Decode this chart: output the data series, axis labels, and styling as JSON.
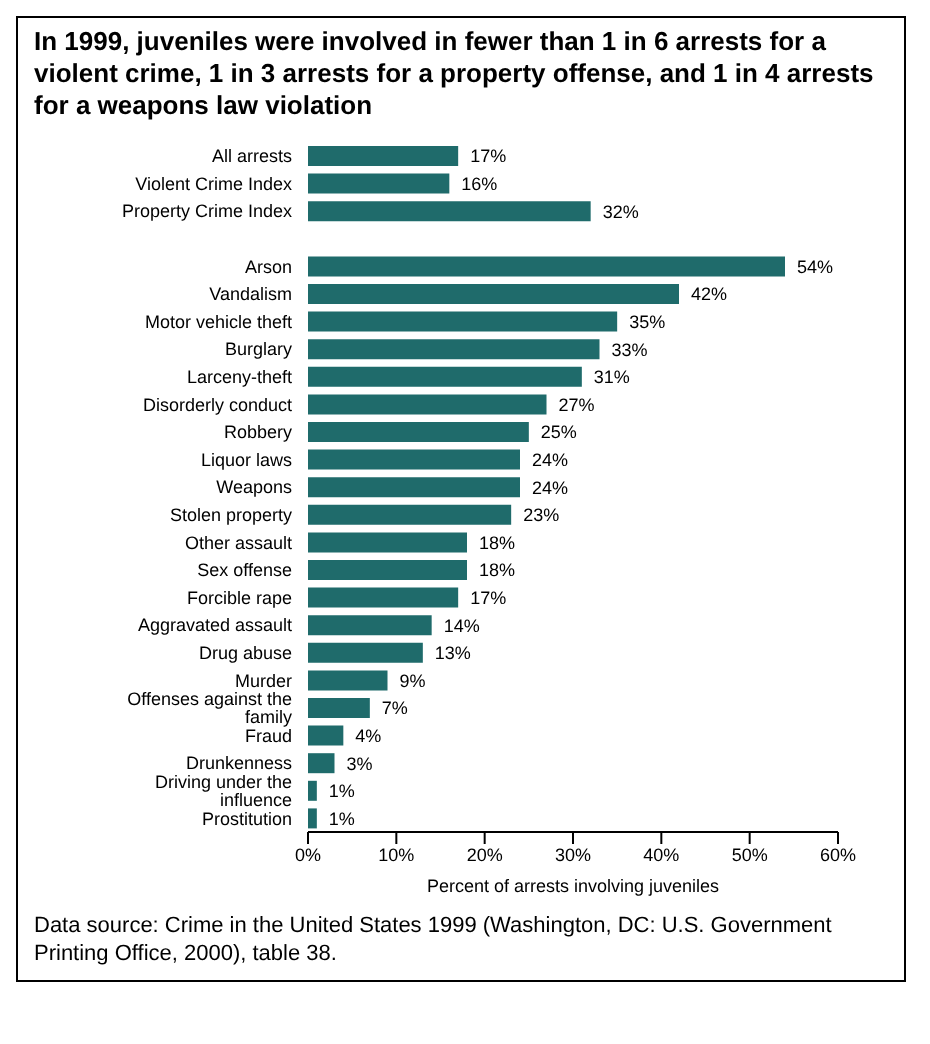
{
  "chart_data": {
    "type": "bar",
    "orientation": "horizontal",
    "title": "In 1999, juveniles were involved in fewer than 1 in 6 arrests for a violent crime, 1 in 3 arrests for a property offense, and 1 in 4 arrests for a weapons law violation",
    "categories": [
      "All arrests",
      "Violent Crime Index",
      "Property Crime Index",
      null,
      "Arson",
      "Vandalism",
      "Motor vehicle theft",
      "Burglary",
      "Larceny-theft",
      "Disorderly conduct",
      "Robbery",
      "Liquor laws",
      "Weapons",
      "Stolen property",
      "Other assault",
      "Sex offense",
      "Forcible rape",
      "Aggravated assault",
      "Drug abuse",
      "Murder",
      "Offenses against the family",
      "Fraud",
      "Drunkenness",
      "Driving under the influence",
      "Prostitution"
    ],
    "values": [
      17,
      16,
      32,
      null,
      54,
      42,
      35,
      33,
      31,
      27,
      25,
      24,
      24,
      23,
      18,
      18,
      17,
      14,
      13,
      9,
      7,
      4,
      3,
      1,
      1
    ],
    "value_labels": [
      "17%",
      "16%",
      "32%",
      null,
      "54%",
      "42%",
      "35%",
      "33%",
      "31%",
      "27%",
      "25%",
      "24%",
      "24%",
      "23%",
      "18%",
      "18%",
      "17%",
      "14%",
      "13%",
      "9%",
      "7%",
      "4%",
      "3%",
      "1%",
      "1%"
    ],
    "color": "#1f6b6b",
    "xlim": [
      0,
      60
    ],
    "xticks": [
      {
        "value": 0,
        "label": "0%"
      },
      {
        "value": 10,
        "label": "10%"
      },
      {
        "value": 20,
        "label": "20%"
      },
      {
        "value": 30,
        "label": "30%"
      },
      {
        "value": 40,
        "label": "40%"
      },
      {
        "value": 50,
        "label": "50%"
      },
      {
        "value": 60,
        "label": "60%"
      }
    ],
    "xlabel": "Percent of arrests involving juveniles",
    "grid": false,
    "legend": false,
    "annotations": [
      "Data source: Crime in the United States 1999 (Washington, DC: U.S. Government Printing Office, 2000), table 38."
    ]
  }
}
